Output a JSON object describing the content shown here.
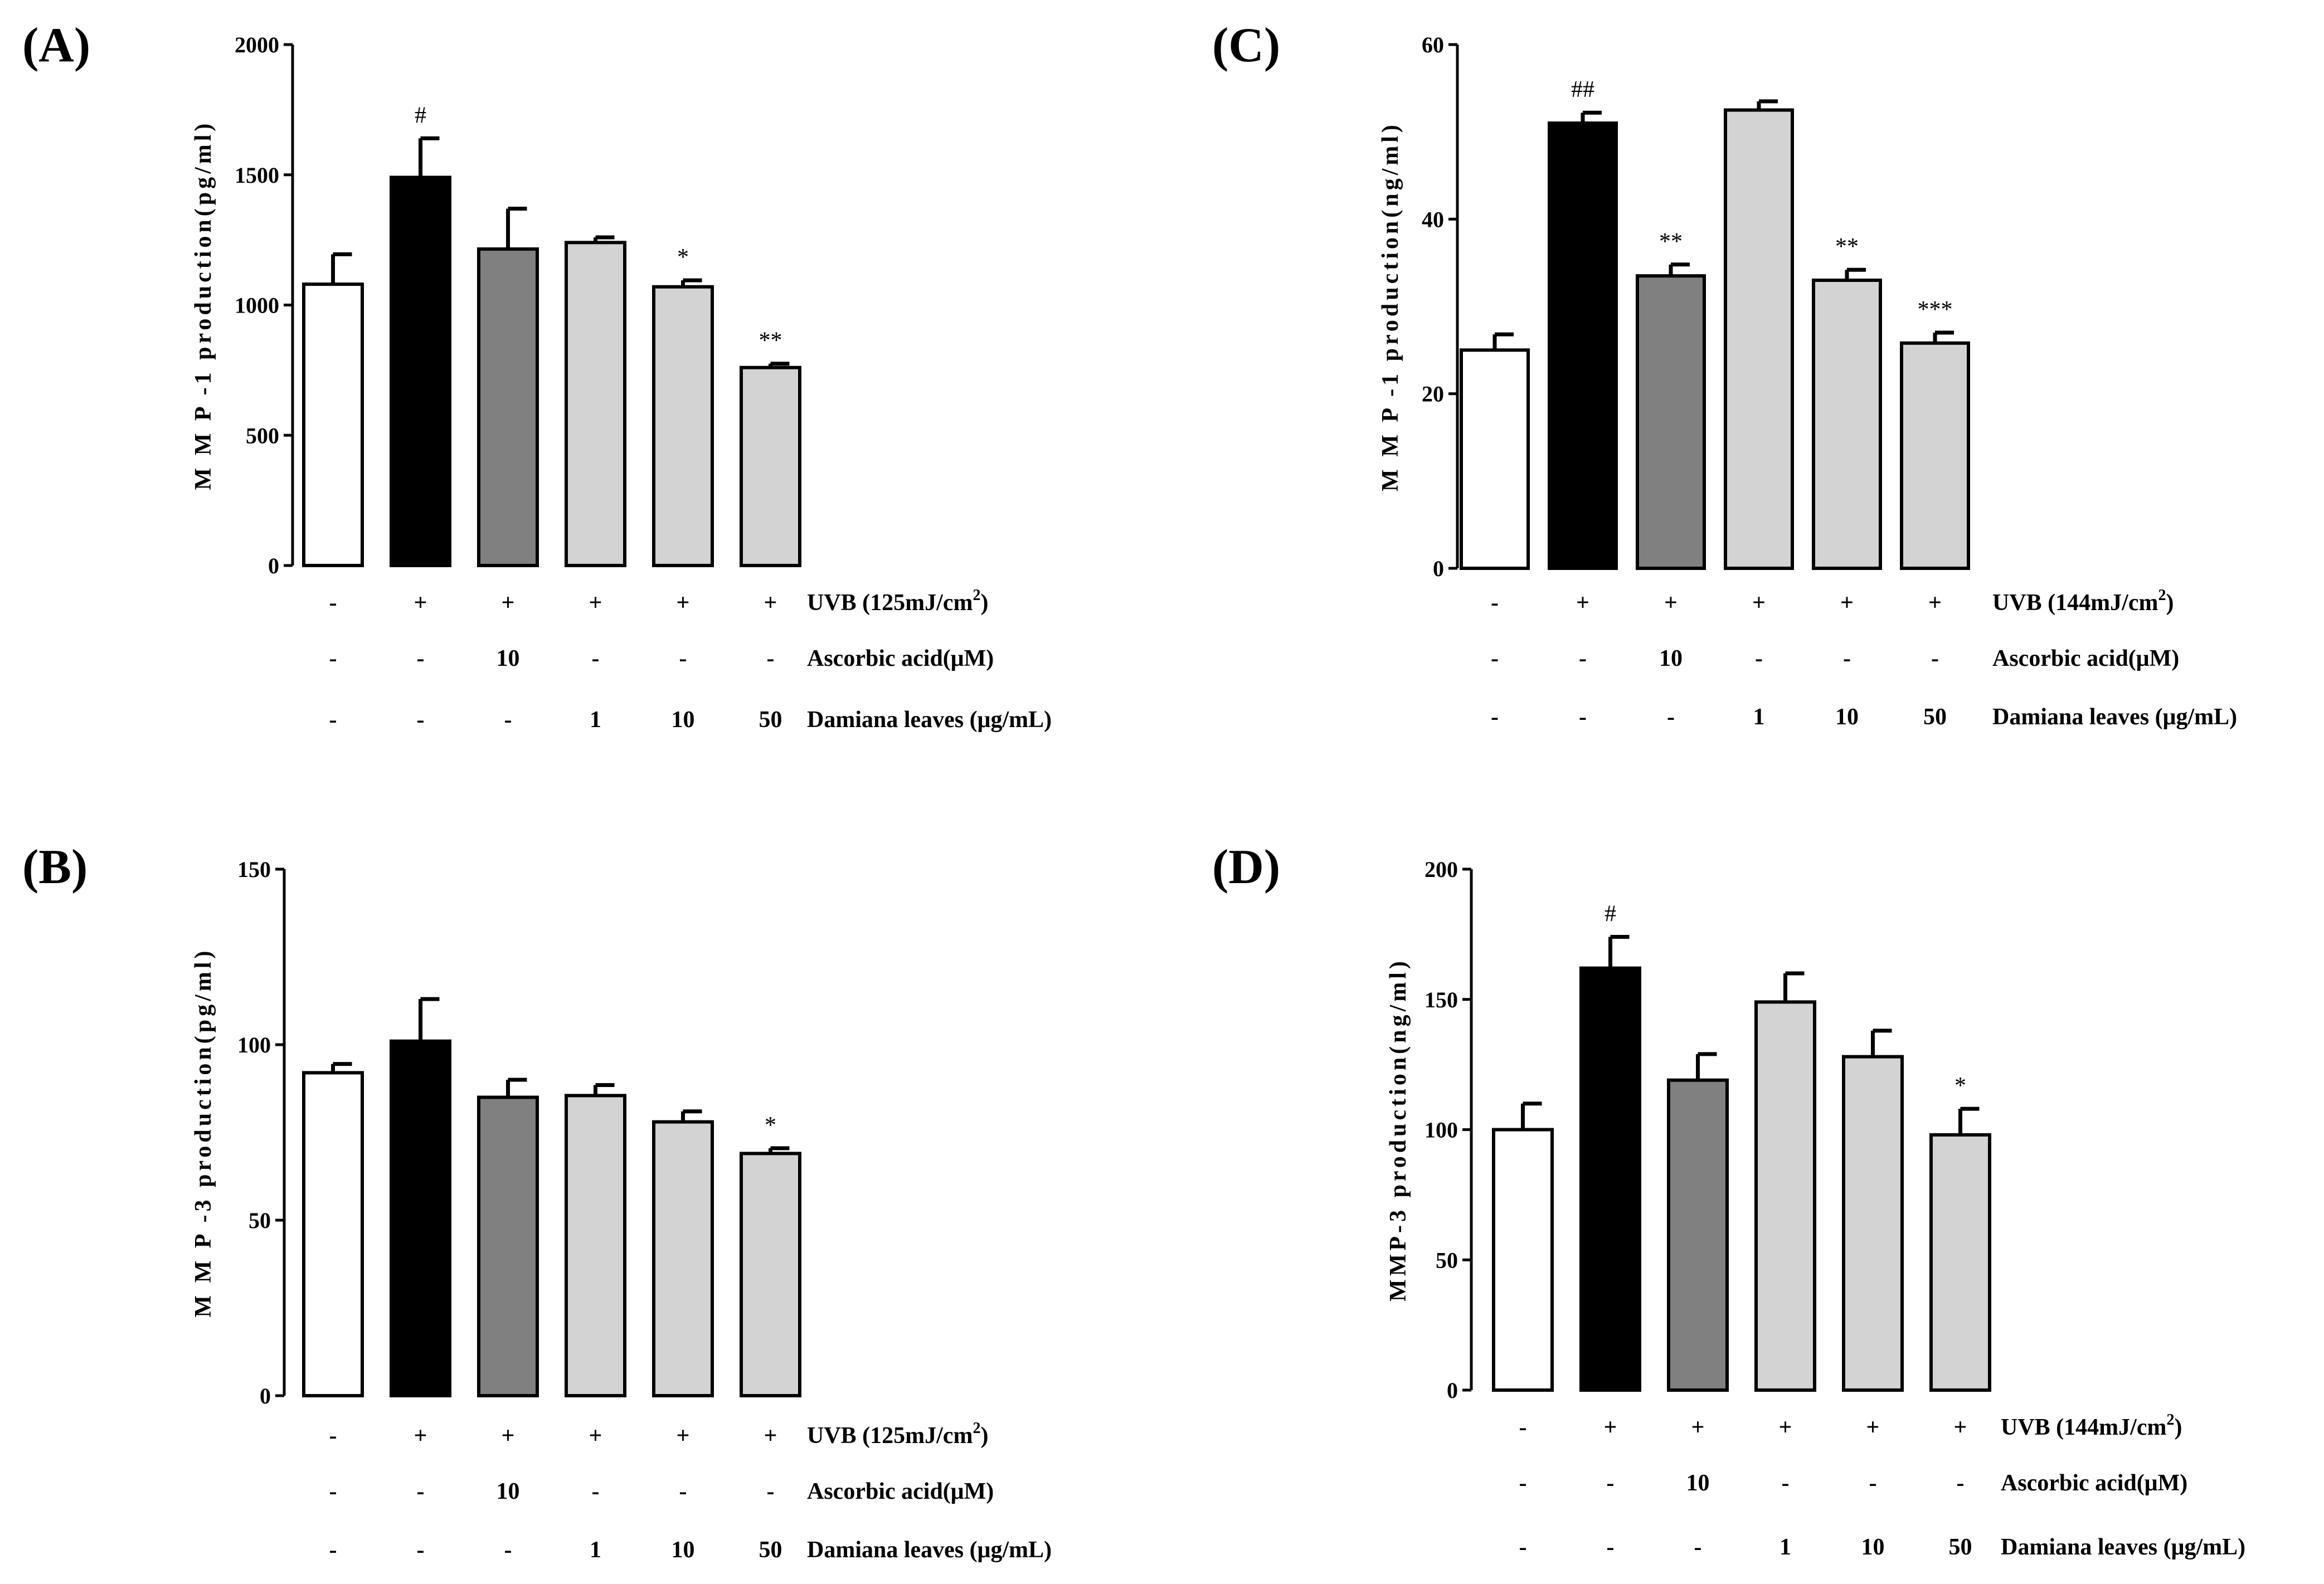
{
  "chart_data": [
    {
      "panel": "(A)",
      "type": "bar",
      "ylabel": "M M P -1  production(pg/ml)",
      "ylim": [
        0,
        2000
      ],
      "yticks": [
        0,
        500,
        1000,
        1500,
        2000
      ],
      "values": [
        1080,
        1490,
        1215,
        1240,
        1070,
        760
      ],
      "errors": [
        115,
        150,
        155,
        20,
        25,
        15
      ],
      "colors": [
        "#ffffff",
        "#000000",
        "#808080",
        "#d3d3d3",
        "#d3d3d3",
        "#d3d3d3"
      ],
      "significance": [
        "",
        "#",
        "",
        "",
        "*",
        "**"
      ],
      "conditions": [
        {
          "label": "UVB (125mJ/cm",
          "sup": "2",
          "tail": ")",
          "values": [
            "-",
            "+",
            "+",
            "+",
            "+",
            "+"
          ]
        },
        {
          "label": "Ascorbic acid(μM)",
          "values": [
            "-",
            "-",
            "10",
            "-",
            "-",
            "-"
          ]
        },
        {
          "label": "Damiana leaves (μg/mL)",
          "values": [
            "-",
            "-",
            "-",
            "1",
            "10",
            "50"
          ]
        }
      ]
    },
    {
      "panel": "(B)",
      "type": "bar",
      "ylabel": "M M P -3  production(pg/ml)",
      "ylim": [
        0,
        150
      ],
      "yticks": [
        0,
        50,
        100,
        150
      ],
      "values": [
        92,
        101,
        85,
        85.5,
        78,
        69
      ],
      "errors": [
        2.5,
        12,
        5,
        3,
        3,
        1.5
      ],
      "colors": [
        "#ffffff",
        "#000000",
        "#808080",
        "#d3d3d3",
        "#d3d3d3",
        "#d3d3d3"
      ],
      "significance": [
        "",
        "",
        "",
        "",
        "",
        "*"
      ],
      "conditions": [
        {
          "label": "UVB (125mJ/cm",
          "sup": "2",
          "tail": ")",
          "values": [
            "-",
            "+",
            "+",
            "+",
            "+",
            "+"
          ]
        },
        {
          "label": "Ascorbic acid(μM)",
          "values": [
            "-",
            "-",
            "10",
            "-",
            "-",
            "-"
          ]
        },
        {
          "label": "Damiana leaves (μg/mL)",
          "values": [
            "-",
            "-",
            "-",
            "1",
            "10",
            "50"
          ]
        }
      ]
    },
    {
      "panel": "(C)",
      "type": "bar",
      "ylabel": "M M P -1  production(ng/ml)",
      "ylim": [
        0,
        60
      ],
      "yticks": [
        0,
        20,
        40,
        60
      ],
      "values": [
        25,
        51,
        33.5,
        52.5,
        33,
        25.8
      ],
      "errors": [
        1.8,
        1.2,
        1.3,
        1,
        1.2,
        1.2
      ],
      "colors": [
        "#ffffff",
        "#000000",
        "#808080",
        "#d3d3d3",
        "#d3d3d3",
        "#d3d3d3"
      ],
      "significance": [
        "",
        "##",
        "**",
        "",
        "**",
        "***"
      ],
      "conditions": [
        {
          "label": "UVB (144mJ/cm",
          "sup": "2",
          "tail": ")",
          "values": [
            "-",
            "+",
            "+",
            "+",
            "+",
            "+"
          ]
        },
        {
          "label": "Ascorbic acid(μM)",
          "values": [
            "-",
            "-",
            "10",
            "-",
            "-",
            "-"
          ]
        },
        {
          "label": "Damiana leaves (μg/mL)",
          "values": [
            "-",
            "-",
            "-",
            "1",
            "10",
            "50"
          ]
        }
      ]
    },
    {
      "panel": "(D)",
      "type": "bar",
      "ylabel": "MMP-3 production(ng/ml)",
      "ylim": [
        0,
        200
      ],
      "yticks": [
        0,
        50,
        100,
        150,
        200
      ],
      "values": [
        100,
        162,
        119,
        149,
        128,
        98
      ],
      "errors": [
        10,
        12,
        10,
        11,
        10,
        10
      ],
      "colors": [
        "#ffffff",
        "#000000",
        "#808080",
        "#d3d3d3",
        "#d3d3d3",
        "#d3d3d3"
      ],
      "significance": [
        "",
        "#",
        "",
        "",
        "",
        "*"
      ],
      "conditions": [
        {
          "label": "UVB (144mJ/cm",
          "sup": "2",
          "tail": ")",
          "values": [
            "-",
            "+",
            "+",
            "+",
            "+",
            "+"
          ]
        },
        {
          "label": "Ascorbic acid(μM)",
          "values": [
            "-",
            "-",
            "10",
            "-",
            "-",
            "-"
          ]
        },
        {
          "label": "Damiana leaves (μg/mL)",
          "values": [
            "-",
            "-",
            "-",
            "1",
            "10",
            "50"
          ]
        }
      ]
    }
  ]
}
